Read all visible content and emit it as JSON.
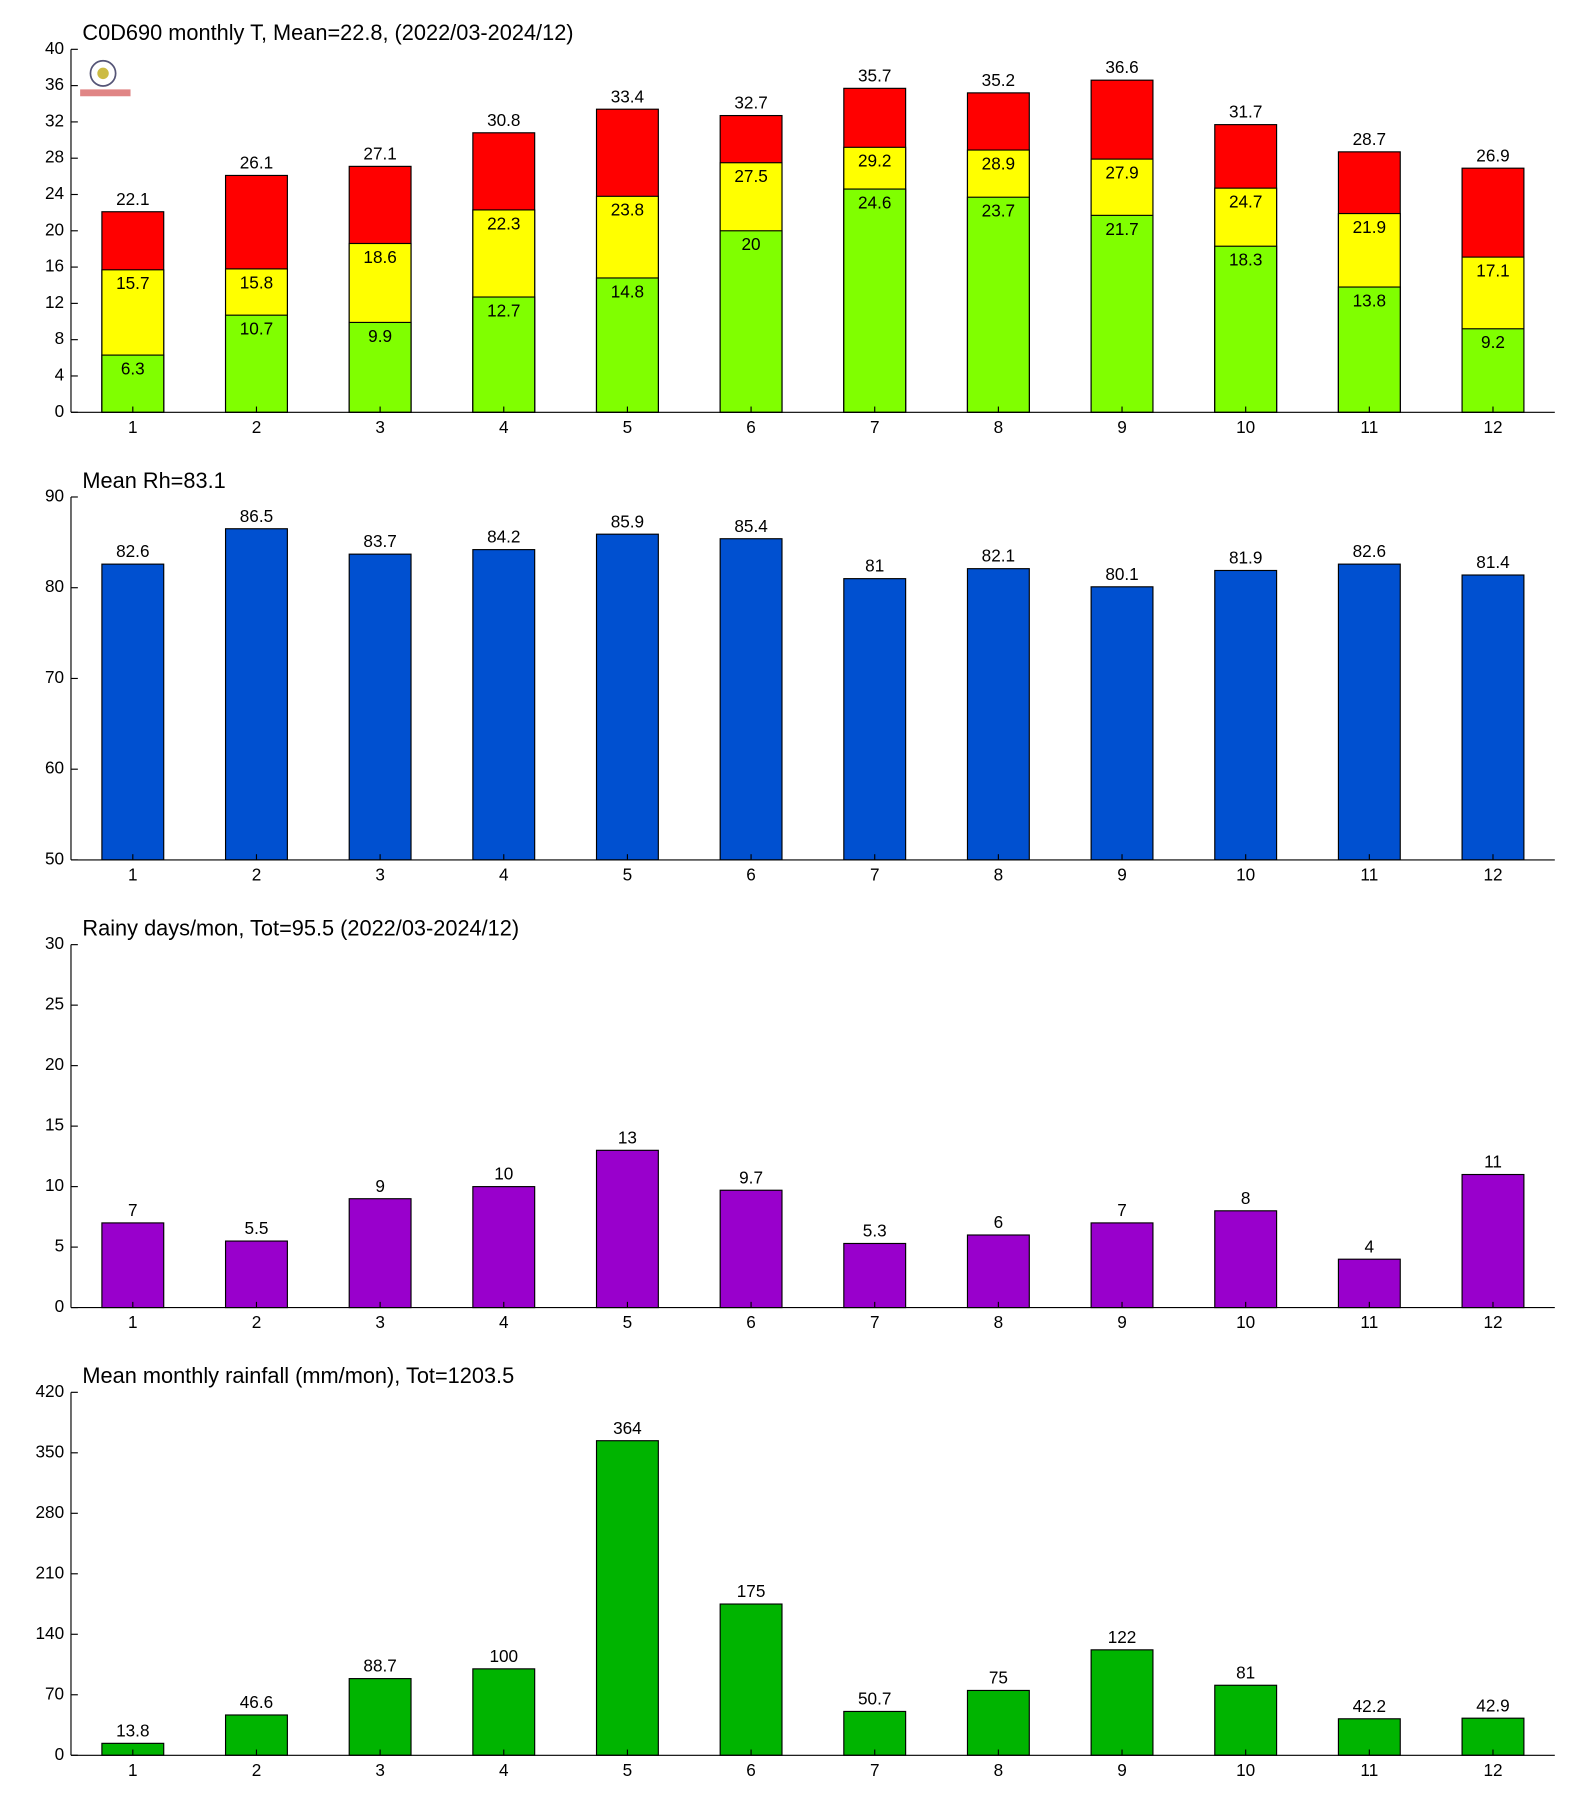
{
  "chart_data": [
    {
      "type": "bar",
      "title": "C0D690 monthly T, Mean=22.8, (2022/03-2024/12)",
      "categories": [
        "1",
        "2",
        "3",
        "4",
        "5",
        "6",
        "7",
        "8",
        "9",
        "10",
        "11",
        "12"
      ],
      "series": [
        {
          "color": "#ff0000",
          "values": [
            22.1,
            26.1,
            27.1,
            30.8,
            33.4,
            32.7,
            35.7,
            35.2,
            36.6,
            31.7,
            28.7,
            26.9
          ]
        },
        {
          "color": "#ffff00",
          "values": [
            15.7,
            15.8,
            18.6,
            22.3,
            23.8,
            27.5,
            29.2,
            28.9,
            27.9,
            24.7,
            21.9,
            17.1
          ]
        },
        {
          "color": "#80ff00",
          "values": [
            6.3,
            10.7,
            9.9,
            12.7,
            14.8,
            20,
            24.6,
            23.7,
            21.7,
            18.3,
            13.8,
            9.2
          ]
        }
      ],
      "ylim": [
        0,
        40
      ],
      "yticks": [
        0,
        4,
        8,
        12,
        16,
        20,
        24,
        28,
        32,
        36,
        40
      ]
    },
    {
      "type": "bar",
      "title": "Mean Rh=83.1",
      "categories": [
        "1",
        "2",
        "3",
        "4",
        "5",
        "6",
        "7",
        "8",
        "9",
        "10",
        "11",
        "12"
      ],
      "values": [
        82.6,
        86.5,
        83.7,
        84.2,
        85.9,
        85.4,
        81,
        82.1,
        80.1,
        81.9,
        82.6,
        81.4
      ],
      "color": "#0050d0",
      "ylim": [
        50,
        90
      ],
      "yticks": [
        50,
        60,
        70,
        80,
        90
      ]
    },
    {
      "type": "bar",
      "title": "Rainy days/mon, Tot=95.5 (2022/03-2024/12)",
      "categories": [
        "1",
        "2",
        "3",
        "4",
        "5",
        "6",
        "7",
        "8",
        "9",
        "10",
        "11",
        "12"
      ],
      "values": [
        7,
        5.5,
        9,
        10,
        13,
        9.7,
        5.3,
        6,
        7,
        8,
        4,
        11
      ],
      "color": "#9900cc",
      "ylim": [
        0,
        30
      ],
      "yticks": [
        0,
        5,
        10,
        15,
        20,
        25,
        30
      ]
    },
    {
      "type": "bar",
      "title": "Mean monthly rainfall (mm/mon), Tot=1203.5",
      "categories": [
        "1",
        "2",
        "3",
        "4",
        "5",
        "6",
        "7",
        "8",
        "9",
        "10",
        "11",
        "12"
      ],
      "values": [
        13.8,
        46.6,
        88.7,
        100,
        364,
        175,
        50.7,
        75,
        122,
        81,
        42.2,
        42.9
      ],
      "color": "#00b400",
      "ylim": [
        0,
        420
      ],
      "yticks": [
        0,
        70,
        140,
        210,
        280,
        350,
        420
      ]
    }
  ]
}
